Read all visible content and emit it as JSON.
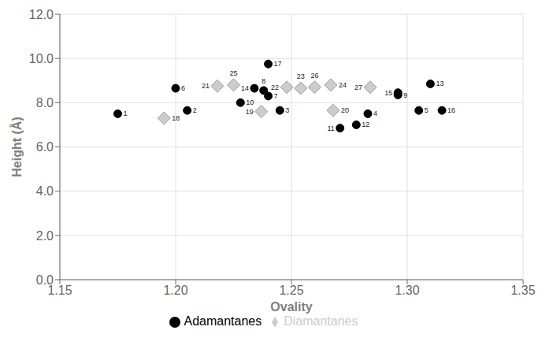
{
  "chart_data": {
    "type": "scatter",
    "xlabel": "Ovality",
    "ylabel": "Height (Å)",
    "series": [
      {
        "name": "Adamantanes",
        "color": "#000000",
        "marker": "circle",
        "x": [
          1.175,
          1.205,
          1.245,
          1.283,
          1.305,
          1.2,
          1.24,
          1.238,
          1.296,
          1.228,
          1.271,
          1.278,
          1.31,
          1.234,
          1.296,
          1.315,
          1.24
        ],
        "values": [
          7.5,
          7.65,
          7.65,
          7.5,
          7.65,
          8.65,
          8.3,
          8.55,
          8.35,
          8.0,
          6.85,
          7.0,
          8.85,
          8.65,
          8.45,
          7.65,
          9.75
        ],
        "point_labels": [
          "1",
          "2",
          "3",
          "4",
          "5",
          "6",
          "7",
          "8",
          "9",
          "10",
          "11",
          "12",
          "13",
          "14",
          "15",
          "16",
          "17"
        ]
      },
      {
        "name": "Diamantanes",
        "color": "#cccccc",
        "marker": "diamond",
        "x": [
          1.195,
          1.237,
          1.268,
          1.218,
          1.248,
          1.254,
          1.267,
          1.225,
          1.26,
          1.284
        ],
        "values": [
          7.3,
          7.6,
          7.65,
          8.75,
          8.7,
          8.65,
          8.8,
          8.8,
          8.7,
          8.7
        ],
        "point_labels": [
          "18",
          "19",
          "20",
          "21",
          "22",
          "23",
          "24",
          "25",
          "26",
          "27"
        ]
      }
    ],
    "xlim": [
      1.15,
      1.35
    ],
    "ylim": [
      0.0,
      12.0
    ],
    "xticks": [
      1.15,
      {
        "value": 1.2,
        "label": "1.20"
      },
      1.25,
      {
        "value": 1.3,
        "label": "1.30"
      },
      1.35
    ],
    "yticks": [
      {
        "value": 0,
        "label": "0.0"
      },
      {
        "value": 2,
        "label": "2.0"
      },
      {
        "value": 4,
        "label": "4.0"
      },
      {
        "value": 6,
        "label": "6.0"
      },
      {
        "value": 8,
        "label": "8.0"
      },
      {
        "value": 10,
        "label": "10.0"
      },
      {
        "value": 12,
        "label": "12.0"
      }
    ],
    "grid": true,
    "legend": "bottom"
  }
}
